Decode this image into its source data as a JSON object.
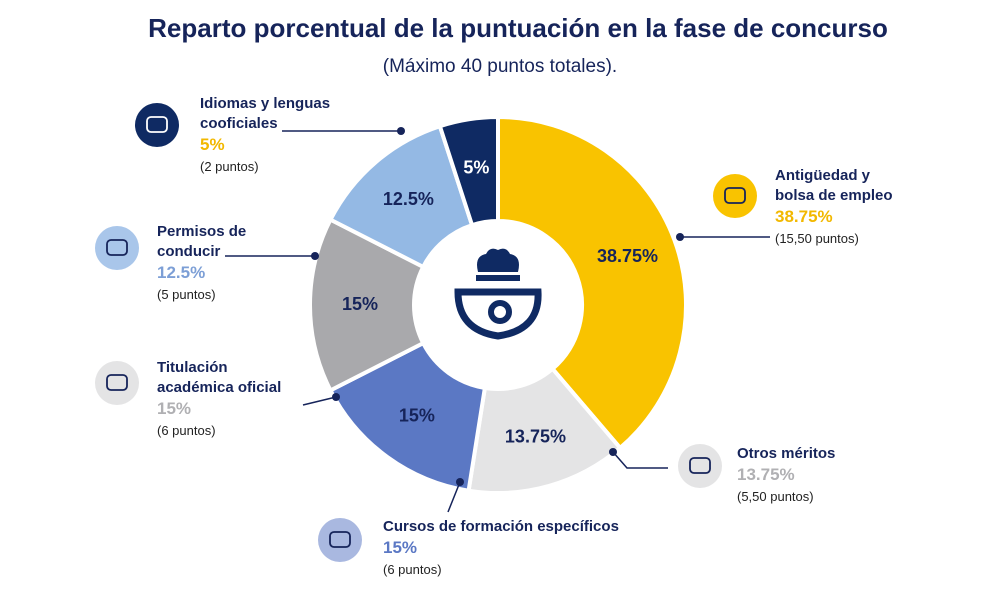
{
  "chart_data": {
    "type": "pie",
    "title": "Reparto porcentual de la puntuación en la fase de concurso",
    "subtitle": "(Máximo 40 puntos totales).",
    "categories": [
      "Antigüedad y bolsa de empleo",
      "Otros méritos",
      "Cursos de formación específicos",
      "Titulación académica oficial",
      "Permisos de conducir",
      "Idiomas y lenguas cooficiales"
    ],
    "values": [
      38.75,
      13.75,
      15,
      15,
      12.5,
      5
    ],
    "value_labels": [
      "38.75%",
      "13.75%",
      "15%",
      "15%",
      "12.5%",
      "5%"
    ],
    "details": [
      "(15,50 puntos)",
      "(5,50 puntos)",
      "(6 puntos)",
      "(6 puntos)",
      "(5 puntos)",
      "(2 puntos)"
    ],
    "colors": [
      "#f9c300",
      "#e4e4e5",
      "#5b78c4",
      "#a9a9ac",
      "#94b9e4",
      "#0f2a63"
    ],
    "label_colors": [
      "#f2b800",
      "#b0b0b3",
      "#5b78c4",
      "#b0b0b3",
      "#7d9fd6",
      "#f2b800"
    ]
  }
}
